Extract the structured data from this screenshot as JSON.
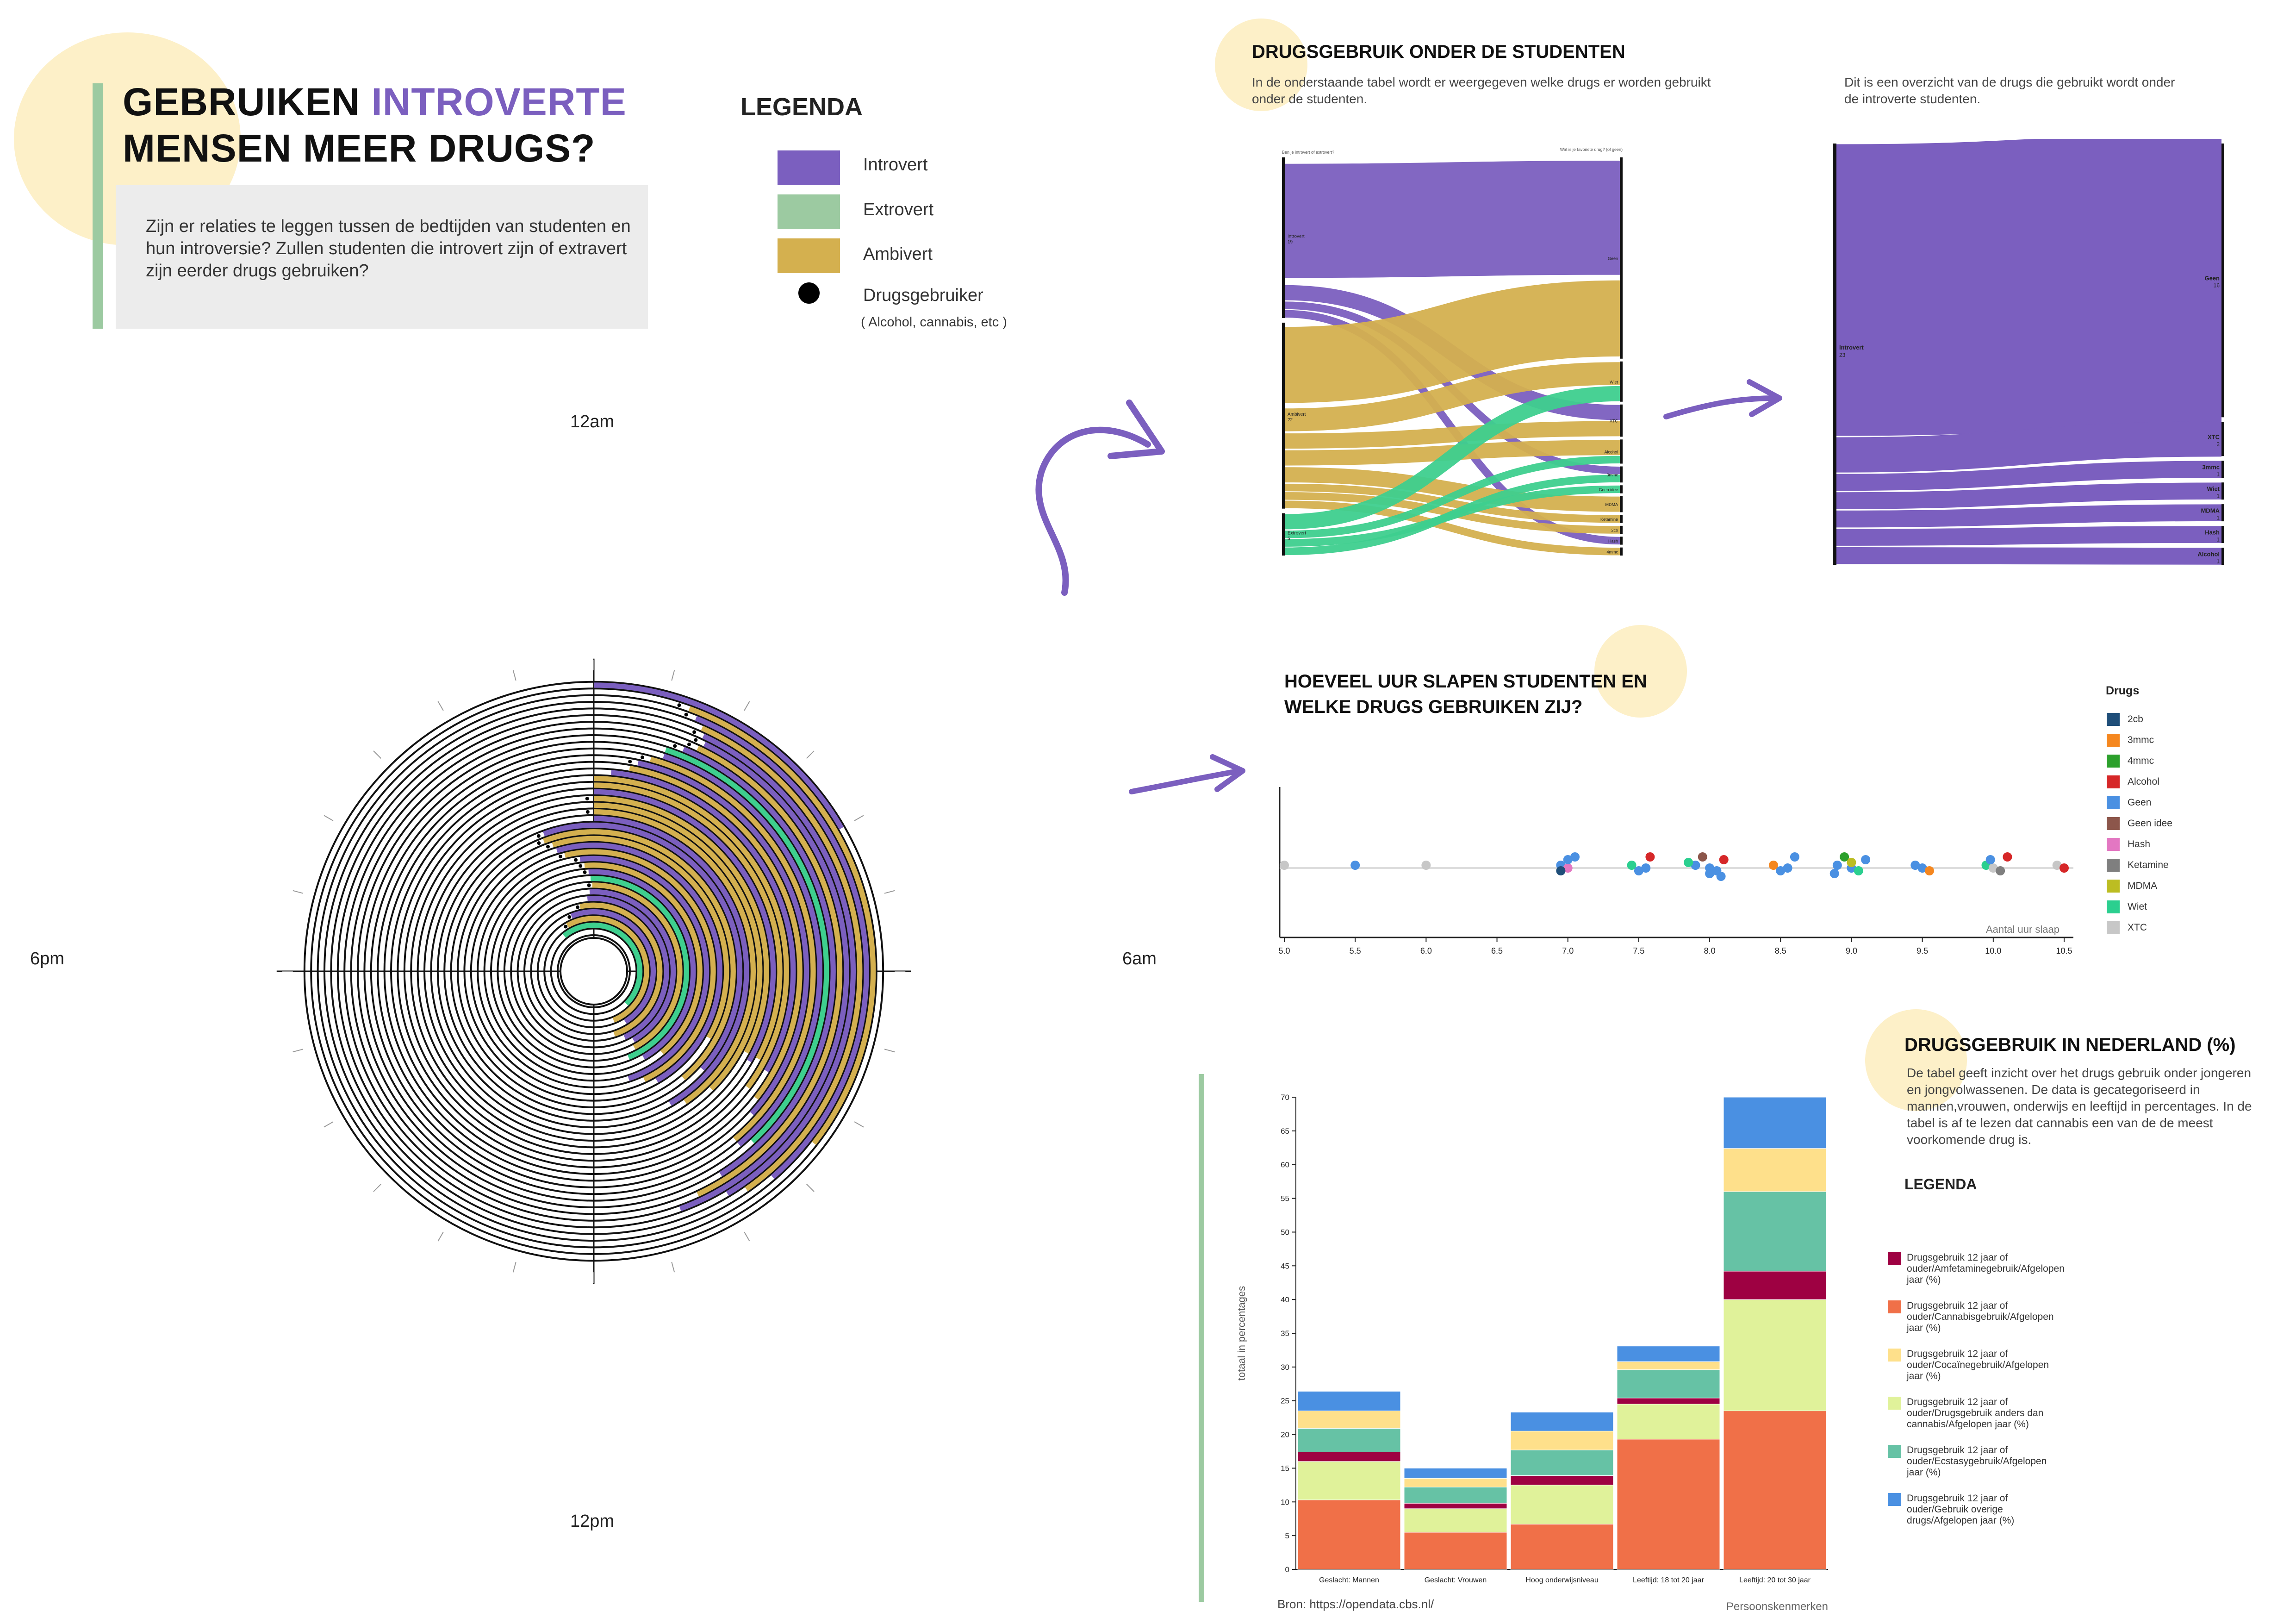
{
  "header": {
    "title_part1": "GEBRUIKEN ",
    "title_highlight": "INTROVERTE",
    "title_part2": "MENSEN MEER DRUGS?",
    "intro": "Zijn er relaties te leggen tussen de bedtijden van studenten en hun introversie? Zullen studenten die introvert zijn of extravert zijn eerder drugs gebruiken?"
  },
  "legend": {
    "title": "LEGENDA",
    "items": [
      {
        "label": "Introvert",
        "color": "#7b5fbf"
      },
      {
        "label": "Extrovert",
        "color": "#9ccaa1"
      },
      {
        "label": "Ambivert",
        "color": "#d4b04f"
      },
      {
        "label": "Drugsgebruiker",
        "color": "#000000"
      }
    ],
    "note": "( Alcohol, cannabis, etc )"
  },
  "clock": {
    "labels": {
      "top": "12am",
      "right": "6am",
      "bottom": "12pm",
      "left": "6pm"
    }
  },
  "sankey_section": {
    "title": "DRUGSGEBRUIK ONDER DE STUDENTEN",
    "text": "In de onderstaande tabel wordt er weergegeven welke drugs er worden gebruikt onder de studenten.",
    "right_text": "Dit is een overzicht van de drugs die gebruikt wordt onder de introverte studenten.",
    "left_axis_title": "Ben je introvert of extrovert?",
    "right_axis_title": "Wat is je favoriete drug? (of geen)",
    "left_nodes": [
      {
        "name": "Introvert",
        "value": "19"
      },
      {
        "name": "Ambivert",
        "value": "22"
      },
      {
        "name": "Extrovert",
        "value": "5"
      }
    ],
    "right_nodes": [
      "Geen",
      "Wiet",
      "XTC",
      "Alcohol",
      "3mmc",
      "Geen idee",
      "MDMA",
      "Ketamine",
      "2cb",
      "Hash",
      "4mmc"
    ],
    "intro_nodes": [
      {
        "name": "Introvert",
        "value": "23"
      },
      {
        "name": "Geen",
        "value": "16"
      },
      {
        "name": "XTC",
        "value": "2"
      },
      {
        "name": "3mmc",
        "value": "1"
      },
      {
        "name": "Wiet",
        "value": "1"
      },
      {
        "name": "MDMA",
        "value": "1"
      },
      {
        "name": "Hash",
        "value": "1"
      },
      {
        "name": "Alcohol",
        "value": "1"
      }
    ]
  },
  "sleep_section": {
    "title_line1": "HOEVEEL UUR SLAPEN STUDENTEN EN",
    "title_line2": "WELKE DRUGS GEBRUIKEN ZIJ?",
    "legend_title": "Drugs",
    "drugs": [
      {
        "name": "2cb",
        "color": "#1f4e79"
      },
      {
        "name": "3mmc",
        "color": "#f5871f"
      },
      {
        "name": "4mmc",
        "color": "#2ca02c"
      },
      {
        "name": "Alcohol",
        "color": "#d62728"
      },
      {
        "name": "Geen",
        "color": "#4a90e2"
      },
      {
        "name": "Geen idee",
        "color": "#8c564b"
      },
      {
        "name": "Hash",
        "color": "#e377c2"
      },
      {
        "name": "Ketamine",
        "color": "#7f7f7f"
      },
      {
        "name": "MDMA",
        "color": "#bcbd22"
      },
      {
        "name": "Wiet",
        "color": "#2bcf8f"
      },
      {
        "name": "XTC",
        "color": "#c7c7c7"
      }
    ],
    "xlabel": "Aantal uur slaap",
    "ticks": [
      "5.0",
      "5.5",
      "6.0",
      "6.5",
      "7.0",
      "7.5",
      "8.0",
      "8.5",
      "9.0",
      "9.5",
      "10.0",
      "10.5"
    ]
  },
  "nl_section": {
    "title": "DRUGSGEBRUIK IN NEDERLAND (%)",
    "text": "De tabel geeft inzicht over het drugs gebruik onder jongeren en jongvolwassenen. De data is gecategoriseerd in mannen,vrouwen, onderwijs en leeftijd in percentages. In de tabel is af te lezen dat cannabis een van de de meest voorkomende drug is.",
    "legend_title": "LEGENDA",
    "source": "Bron: https://opendata.cbs.nl/",
    "xlabel_right": "Persoonskenmerken"
  },
  "chart_data": [
    {
      "type": "radial_bar",
      "title": "",
      "groups": [
        "Introvert",
        "Extrovert",
        "Ambivert"
      ],
      "colors": {
        "Introvert": "#7b5fbf",
        "Extrovert": "#3ecf8e",
        "Ambivert": "#d4b04f"
      },
      "angle_unit": "degrees clockwise from 12am",
      "arcs": [
        {
          "ring": 1,
          "start": 0,
          "end": 60,
          "group": "Introvert",
          "user": false
        },
        {
          "ring": 2,
          "start": 20,
          "end": 128,
          "group": "Ambivert",
          "user": true
        },
        {
          "ring": 3,
          "start": 22,
          "end": 139,
          "group": "Introvert",
          "user": true
        },
        {
          "ring": 4,
          "start": 24,
          "end": 145,
          "group": "Ambivert",
          "user": false
        },
        {
          "ring": 5,
          "start": 25,
          "end": 149,
          "group": "Introvert",
          "user": true
        },
        {
          "ring": 6,
          "start": 26,
          "end": 160,
          "group": "Introvert",
          "user": true
        },
        {
          "ring": 7,
          "start": 25,
          "end": 155,
          "group": "Ambivert",
          "user": true
        },
        {
          "ring": 8,
          "start": 22,
          "end": 148,
          "group": "Introvert",
          "user": true
        },
        {
          "ring": 9,
          "start": 18,
          "end": 137,
          "group": "Extrovert",
          "user": false
        },
        {
          "ring": 10,
          "start": 18,
          "end": 140,
          "group": "Introvert",
          "user": false
        },
        {
          "ring": 11,
          "start": 15,
          "end": 140,
          "group": "Ambivert",
          "user": true
        },
        {
          "ring": 12,
          "start": 12,
          "end": 132,
          "group": "Introvert",
          "user": true
        },
        {
          "ring": 13,
          "start": 10,
          "end": 128,
          "group": "Ambivert",
          "user": false
        },
        {
          "ring": 14,
          "start": 5,
          "end": 120,
          "group": "Introvert",
          "user": false
        },
        {
          "ring": 15,
          "start": 0,
          "end": 127,
          "group": "Ambivert",
          "user": false
        },
        {
          "ring": 16,
          "start": 0,
          "end": 118,
          "group": "Ambivert",
          "user": false
        },
        {
          "ring": 17,
          "start": 0,
          "end": 120,
          "group": "Introvert",
          "user": false
        },
        {
          "ring": 18,
          "start": 0,
          "end": 118,
          "group": "Ambivert",
          "user": true
        },
        {
          "ring": 19,
          "start": 0,
          "end": 135,
          "group": "Ambivert",
          "user": false
        },
        {
          "ring": 20,
          "start": 0,
          "end": 145,
          "group": "Ambivert",
          "user": true
        },
        {
          "ring": 21,
          "start": 0,
          "end": 150,
          "group": "Introvert",
          "user": false
        },
        {
          "ring": 22,
          "start": -20,
          "end": 132,
          "group": "Introvert",
          "user": true
        },
        {
          "ring": 23,
          "start": -21,
          "end": 140,
          "group": "Ambivert",
          "user": true
        },
        {
          "ring": 24,
          "start": -18,
          "end": 120,
          "group": "Ambivert",
          "user": true
        },
        {
          "ring": 25,
          "start": -17,
          "end": 150,
          "group": "Introvert",
          "user": false
        },
        {
          "ring": 26,
          "start": -14,
          "end": 155,
          "group": "Ambivert",
          "user": true
        },
        {
          "ring": 27,
          "start": -7,
          "end": 162,
          "group": "Introvert",
          "user": true
        },
        {
          "ring": 28,
          "start": -5,
          "end": 140,
          "group": "Ambivert",
          "user": true
        },
        {
          "ring": 29,
          "start": -3,
          "end": 150,
          "group": "Introvert",
          "user": true
        },
        {
          "ring": 30,
          "start": -2,
          "end": 158,
          "group": "Extrovert",
          "user": false
        },
        {
          "ring": 31,
          "start": -1,
          "end": 152,
          "group": "Ambivert",
          "user": true
        },
        {
          "ring": 32,
          "start": -3,
          "end": 150,
          "group": "Introvert",
          "user": false
        },
        {
          "ring": 33,
          "start": -5,
          "end": 155,
          "group": "Introvert",
          "user": false
        },
        {
          "ring": 34,
          "start": -12,
          "end": 162,
          "group": "Ambivert",
          "user": true
        },
        {
          "ring": 35,
          "start": -22,
          "end": 148,
          "group": "Introvert",
          "user": true
        },
        {
          "ring": 36,
          "start": -30,
          "end": 158,
          "group": "Ambivert",
          "user": true
        },
        {
          "ring": 37,
          "start": -40,
          "end": 135,
          "group": "Extrovert",
          "user": false
        }
      ]
    },
    {
      "type": "sankey",
      "title": "",
      "sources": [
        {
          "name": "Introvert",
          "value": 19
        },
        {
          "name": "Ambivert",
          "value": 22
        },
        {
          "name": "Extrovert",
          "value": 5
        }
      ],
      "targets": [
        "Geen",
        "Wiet",
        "XTC",
        "Alcohol",
        "3mmc",
        "Geen idee",
        "MDMA",
        "Ketamine",
        "2cb",
        "Hash",
        "4mmc"
      ],
      "links": [
        {
          "source": "Introvert",
          "target": "Geen",
          "value": 15
        },
        {
          "source": "Introvert",
          "target": "XTC",
          "value": 2
        },
        {
          "source": "Introvert",
          "target": "3mmc",
          "value": 1
        },
        {
          "source": "Introvert",
          "target": "Hash",
          "value": 1
        },
        {
          "source": "Ambivert",
          "target": "Geen",
          "value": 10
        },
        {
          "source": "Ambivert",
          "target": "Wiet",
          "value": 3
        },
        {
          "source": "Ambivert",
          "target": "XTC",
          "value": 2
        },
        {
          "source": "Ambivert",
          "target": "Alcohol",
          "value": 2
        },
        {
          "source": "Ambivert",
          "target": "MDMA",
          "value": 2
        },
        {
          "source": "Ambivert",
          "target": "Ketamine",
          "value": 1
        },
        {
          "source": "Ambivert",
          "target": "2cb",
          "value": 1
        },
        {
          "source": "Ambivert",
          "target": "4mmc",
          "value": 1
        },
        {
          "source": "Extrovert",
          "target": "Wiet",
          "value": 2
        },
        {
          "source": "Extrovert",
          "target": "Alcohol",
          "value": 1
        },
        {
          "source": "Extrovert",
          "target": "Geen idee",
          "value": 1
        },
        {
          "source": "Extrovert",
          "target": "3mmc",
          "value": 1
        }
      ]
    },
    {
      "type": "sankey",
      "title": "",
      "sources": [
        {
          "name": "Introvert",
          "value": 23
        }
      ],
      "links": [
        {
          "source": "Introvert",
          "target": "Geen",
          "value": 16
        },
        {
          "source": "Introvert",
          "target": "XTC",
          "value": 2
        },
        {
          "source": "Introvert",
          "target": "3mmc",
          "value": 1
        },
        {
          "source": "Introvert",
          "target": "Wiet",
          "value": 1
        },
        {
          "source": "Introvert",
          "target": "MDMA",
          "value": 1
        },
        {
          "source": "Introvert",
          "target": "Hash",
          "value": 1
        },
        {
          "source": "Introvert",
          "target": "Alcohol",
          "value": 1
        }
      ]
    },
    {
      "type": "scatter",
      "title": "",
      "xlabel": "Aantal uur slaap",
      "xlim": [
        5.0,
        10.5
      ],
      "points": [
        {
          "x": 5.0,
          "drug": "XTC"
        },
        {
          "x": 5.5,
          "drug": "Geen"
        },
        {
          "x": 6.0,
          "drug": "XTC"
        },
        {
          "x": 6.95,
          "drug": "Geen"
        },
        {
          "x": 7.0,
          "drug": "Hash"
        },
        {
          "x": 6.95,
          "drug": "2cb"
        },
        {
          "x": 7.05,
          "drug": "Geen"
        },
        {
          "x": 7.0,
          "drug": "Geen"
        },
        {
          "x": 7.45,
          "drug": "Wiet"
        },
        {
          "x": 7.55,
          "drug": "Geen"
        },
        {
          "x": 7.5,
          "drug": "Geen"
        },
        {
          "x": 7.58,
          "drug": "Alcohol"
        },
        {
          "x": 7.9,
          "drug": "Geen"
        },
        {
          "x": 8.0,
          "drug": "Geen"
        },
        {
          "x": 8.05,
          "drug": "Geen"
        },
        {
          "x": 7.95,
          "drug": "Geen idee"
        },
        {
          "x": 8.1,
          "drug": "Alcohol"
        },
        {
          "x": 7.85,
          "drug": "Wiet"
        },
        {
          "x": 8.0,
          "drug": "Geen"
        },
        {
          "x": 8.08,
          "drug": "Geen"
        },
        {
          "x": 8.45,
          "drug": "3mmc"
        },
        {
          "x": 8.55,
          "drug": "Geen"
        },
        {
          "x": 8.5,
          "drug": "Geen"
        },
        {
          "x": 8.6,
          "drug": "Geen"
        },
        {
          "x": 8.9,
          "drug": "Geen"
        },
        {
          "x": 9.0,
          "drug": "Geen"
        },
        {
          "x": 9.05,
          "drug": "Wiet"
        },
        {
          "x": 8.95,
          "drug": "4mmc"
        },
        {
          "x": 9.1,
          "drug": "Geen"
        },
        {
          "x": 9.0,
          "drug": "MDMA"
        },
        {
          "x": 8.88,
          "drug": "Geen"
        },
        {
          "x": 9.45,
          "drug": "Geen"
        },
        {
          "x": 9.5,
          "drug": "Geen"
        },
        {
          "x": 9.55,
          "drug": "3mmc"
        },
        {
          "x": 9.95,
          "drug": "Wiet"
        },
        {
          "x": 10.0,
          "drug": "XTC"
        },
        {
          "x": 10.05,
          "drug": "Ketamine"
        },
        {
          "x": 10.1,
          "drug": "Alcohol"
        },
        {
          "x": 9.98,
          "drug": "Geen"
        },
        {
          "x": 10.45,
          "drug": "XTC"
        },
        {
          "x": 10.5,
          "drug": "Alcohol"
        }
      ]
    },
    {
      "type": "bar",
      "title": "",
      "ylabel": "totaal in percentages",
      "xlabel": "Persoonskenmerken",
      "ylim": [
        0,
        70
      ],
      "yticks": [
        0,
        5,
        10,
        15,
        20,
        25,
        30,
        35,
        40,
        45,
        50,
        55,
        60,
        65,
        70
      ],
      "categories": [
        "Geslacht: Mannen",
        "Geslacht: Vrouwen",
        "Hoog onderwijsniveau",
        "Leeftijd: 18 tot 20 jaar",
        "Leeftijd: 20 tot 30 jaar"
      ],
      "series": [
        {
          "name": "Drugsgebruik 12 jaar of ouder/Cannabisgebruik/Afgelopen jaar (%)",
          "color": "#f07048",
          "values": [
            10.3,
            5.5,
            6.7,
            19.3,
            23.5
          ]
        },
        {
          "name": "Drugsgebruik 12 jaar of ouder/Drugsgebruik anders dan cannabis/Afgelopen jaar (%)",
          "color": "#e0f29a",
          "values": [
            5.7,
            3.5,
            5.8,
            5.2,
            16.5
          ]
        },
        {
          "name": "Drugsgebruik 12 jaar of ouder/Amfetaminegebruik/Afgelopen jaar (%)",
          "color": "#9e0142",
          "values": [
            1.4,
            0.8,
            1.4,
            0.9,
            4.2
          ]
        },
        {
          "name": "Drugsgebruik 12 jaar of ouder/Ecstasygebruik/Afgelopen jaar (%)",
          "color": "#66c2a5",
          "values": [
            3.5,
            2.4,
            3.8,
            4.2,
            11.8
          ]
        },
        {
          "name": "Drugsgebruik 12 jaar of ouder/Cocaïnegebruik/Afgelopen jaar (%)",
          "color": "#fee08b",
          "values": [
            2.6,
            1.3,
            2.8,
            1.2,
            6.4
          ]
        },
        {
          "name": "Drugsgebruik 12 jaar of ouder/Gebruik overige drugs/Afgelopen jaar (%)",
          "color": "#4a90e2",
          "values": [
            2.9,
            1.5,
            2.8,
            2.3,
            7.6
          ]
        }
      ]
    }
  ],
  "nl_legend_labels": [
    "Drugsgebruik 12 jaar of ouder/Amfetaminegebruik/Afgelopen jaar (%)",
    "Drugsgebruik 12 jaar of ouder/Cannabisgebruik/Afgelopen jaar (%)",
    "Drugsgebruik 12 jaar of ouder/Cocaïnegebruik/Afgelopen jaar (%)",
    "Drugsgebruik 12 jaar of ouder/Drugsgebruik anders dan cannabis/Afgelopen jaar (%)",
    "Drugsgebruik 12 jaar of ouder/Ecstasygebruik/Afgelopen jaar (%)",
    "Drugsgebruik 12 jaar of ouder/Gebruik overige drugs/Afgelopen jaar (%)"
  ],
  "nl_legend_colors": [
    "#9e0142",
    "#f07048",
    "#fee08b",
    "#e0f29a",
    "#66c2a5",
    "#4a90e2"
  ]
}
